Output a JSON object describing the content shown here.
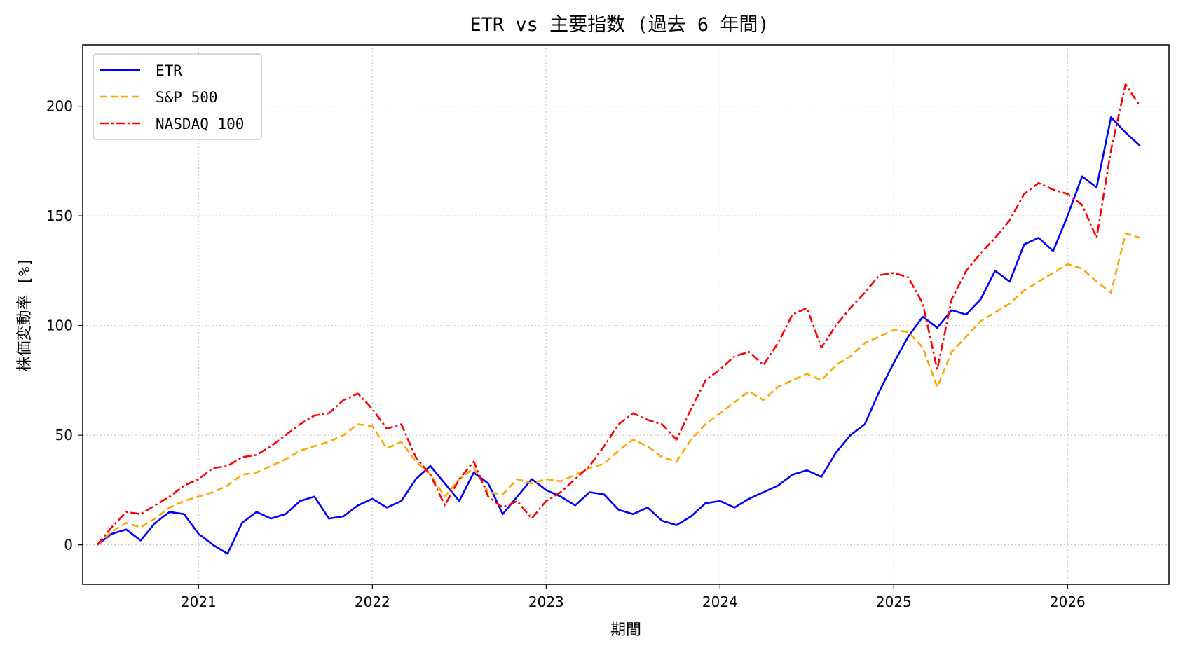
{
  "chart_data": {
    "type": "line",
    "title": "ETR vs 主要指数 (過去 6 年間)",
    "xlabel": "期間",
    "ylabel": "株価変動率 [%]",
    "x_range": [
      "2020-05",
      "2026-08"
    ],
    "ylim": [
      -18,
      228
    ],
    "x_ticks": [
      "2021",
      "2022",
      "2023",
      "2024",
      "2025",
      "2026"
    ],
    "y_ticks": [
      0,
      50,
      100,
      150,
      200
    ],
    "grid": true,
    "legend_position": "upper-left",
    "series": [
      {
        "name": "ETR",
        "color": "#0000ff",
        "style": "solid",
        "points": [
          [
            "2020-06",
            0
          ],
          [
            "2020-07",
            5
          ],
          [
            "2020-08",
            7
          ],
          [
            "2020-09",
            2
          ],
          [
            "2020-10",
            10
          ],
          [
            "2020-11",
            15
          ],
          [
            "2020-12",
            14
          ],
          [
            "2021-01",
            5
          ],
          [
            "2021-02",
            0
          ],
          [
            "2021-03",
            -4
          ],
          [
            "2021-04",
            10
          ],
          [
            "2021-05",
            15
          ],
          [
            "2021-06",
            12
          ],
          [
            "2021-07",
            14
          ],
          [
            "2021-08",
            20
          ],
          [
            "2021-09",
            22
          ],
          [
            "2021-10",
            12
          ],
          [
            "2021-11",
            13
          ],
          [
            "2021-12",
            18
          ],
          [
            "2022-01",
            21
          ],
          [
            "2022-02",
            17
          ],
          [
            "2022-03",
            20
          ],
          [
            "2022-04",
            30
          ],
          [
            "2022-05",
            36
          ],
          [
            "2022-06",
            28
          ],
          [
            "2022-07",
            20
          ],
          [
            "2022-08",
            33
          ],
          [
            "2022-09",
            28
          ],
          [
            "2022-10",
            14
          ],
          [
            "2022-11",
            22
          ],
          [
            "2022-12",
            30
          ],
          [
            "2023-01",
            25
          ],
          [
            "2023-02",
            22
          ],
          [
            "2023-03",
            18
          ],
          [
            "2023-04",
            24
          ],
          [
            "2023-05",
            23
          ],
          [
            "2023-06",
            16
          ],
          [
            "2023-07",
            14
          ],
          [
            "2023-08",
            17
          ],
          [
            "2023-09",
            11
          ],
          [
            "2023-10",
            9
          ],
          [
            "2023-11",
            13
          ],
          [
            "2023-12",
            19
          ],
          [
            "2024-01",
            20
          ],
          [
            "2024-02",
            17
          ],
          [
            "2024-03",
            21
          ],
          [
            "2024-04",
            24
          ],
          [
            "2024-05",
            27
          ],
          [
            "2024-06",
            32
          ],
          [
            "2024-07",
            34
          ],
          [
            "2024-08",
            31
          ],
          [
            "2024-09",
            42
          ],
          [
            "2024-10",
            50
          ],
          [
            "2024-11",
            55
          ],
          [
            "2024-12",
            70
          ],
          [
            "2025-01",
            83
          ],
          [
            "2025-02",
            95
          ],
          [
            "2025-03",
            104
          ],
          [
            "2025-04",
            99
          ],
          [
            "2025-05",
            107
          ],
          [
            "2025-06",
            105
          ],
          [
            "2025-07",
            112
          ],
          [
            "2025-08",
            125
          ],
          [
            "2025-09",
            120
          ],
          [
            "2025-10",
            137
          ],
          [
            "2025-11",
            140
          ],
          [
            "2025-12",
            134
          ],
          [
            "2026-01",
            150
          ],
          [
            "2026-02",
            168
          ],
          [
            "2026-03",
            163
          ],
          [
            "2026-04",
            195
          ],
          [
            "2026-05",
            188
          ],
          [
            "2026-06",
            182
          ]
        ]
      },
      {
        "name": "S&P 500",
        "color": "#ffa500",
        "style": "dashed",
        "points": [
          [
            "2020-06",
            0
          ],
          [
            "2020-07",
            6
          ],
          [
            "2020-08",
            10
          ],
          [
            "2020-09",
            8
          ],
          [
            "2020-10",
            12
          ],
          [
            "2020-11",
            17
          ],
          [
            "2020-12",
            20
          ],
          [
            "2021-01",
            22
          ],
          [
            "2021-02",
            24
          ],
          [
            "2021-03",
            27
          ],
          [
            "2021-04",
            32
          ],
          [
            "2021-05",
            33
          ],
          [
            "2021-06",
            36
          ],
          [
            "2021-07",
            39
          ],
          [
            "2021-08",
            43
          ],
          [
            "2021-09",
            45
          ],
          [
            "2021-10",
            47
          ],
          [
            "2021-11",
            50
          ],
          [
            "2021-12",
            55
          ],
          [
            "2022-01",
            54
          ],
          [
            "2022-02",
            44
          ],
          [
            "2022-03",
            47
          ],
          [
            "2022-04",
            38
          ],
          [
            "2022-05",
            32
          ],
          [
            "2022-06",
            22
          ],
          [
            "2022-07",
            30
          ],
          [
            "2022-08",
            35
          ],
          [
            "2022-09",
            24
          ],
          [
            "2022-10",
            23
          ],
          [
            "2022-11",
            30
          ],
          [
            "2022-12",
            28
          ],
          [
            "2023-01",
            30
          ],
          [
            "2023-02",
            29
          ],
          [
            "2023-03",
            32
          ],
          [
            "2023-04",
            35
          ],
          [
            "2023-05",
            37
          ],
          [
            "2023-06",
            43
          ],
          [
            "2023-07",
            48
          ],
          [
            "2023-08",
            45
          ],
          [
            "2023-09",
            40
          ],
          [
            "2023-10",
            38
          ],
          [
            "2023-11",
            48
          ],
          [
            "2023-12",
            55
          ],
          [
            "2024-01",
            60
          ],
          [
            "2024-02",
            65
          ],
          [
            "2024-03",
            70
          ],
          [
            "2024-04",
            66
          ],
          [
            "2024-05",
            72
          ],
          [
            "2024-06",
            75
          ],
          [
            "2024-07",
            78
          ],
          [
            "2024-08",
            75
          ],
          [
            "2024-09",
            82
          ],
          [
            "2024-10",
            86
          ],
          [
            "2024-11",
            92
          ],
          [
            "2024-12",
            95
          ],
          [
            "2025-01",
            98
          ],
          [
            "2025-02",
            97
          ],
          [
            "2025-03",
            90
          ],
          [
            "2025-04",
            72
          ],
          [
            "2025-05",
            88
          ],
          [
            "2025-06",
            95
          ],
          [
            "2025-07",
            102
          ],
          [
            "2025-08",
            106
          ],
          [
            "2025-09",
            110
          ],
          [
            "2025-10",
            116
          ],
          [
            "2025-11",
            120
          ],
          [
            "2025-12",
            124
          ],
          [
            "2026-01",
            128
          ],
          [
            "2026-02",
            126
          ],
          [
            "2026-03",
            120
          ],
          [
            "2026-04",
            115
          ],
          [
            "2026-05",
            142
          ],
          [
            "2026-06",
            140
          ]
        ]
      },
      {
        "name": "NASDAQ 100",
        "color": "#ff0000",
        "style": "dashdot",
        "points": [
          [
            "2020-06",
            0
          ],
          [
            "2020-07",
            8
          ],
          [
            "2020-08",
            15
          ],
          [
            "2020-09",
            14
          ],
          [
            "2020-10",
            18
          ],
          [
            "2020-11",
            22
          ],
          [
            "2020-12",
            27
          ],
          [
            "2021-01",
            30
          ],
          [
            "2021-02",
            35
          ],
          [
            "2021-03",
            36
          ],
          [
            "2021-04",
            40
          ],
          [
            "2021-05",
            41
          ],
          [
            "2021-06",
            45
          ],
          [
            "2021-07",
            50
          ],
          [
            "2021-08",
            55
          ],
          [
            "2021-09",
            59
          ],
          [
            "2021-10",
            60
          ],
          [
            "2021-11",
            66
          ],
          [
            "2021-12",
            69
          ],
          [
            "2022-01",
            62
          ],
          [
            "2022-02",
            53
          ],
          [
            "2022-03",
            55
          ],
          [
            "2022-04",
            40
          ],
          [
            "2022-05",
            32
          ],
          [
            "2022-06",
            18
          ],
          [
            "2022-07",
            30
          ],
          [
            "2022-08",
            38
          ],
          [
            "2022-09",
            22
          ],
          [
            "2022-10",
            17
          ],
          [
            "2022-11",
            20
          ],
          [
            "2022-12",
            12
          ],
          [
            "2023-01",
            20
          ],
          [
            "2023-02",
            24
          ],
          [
            "2023-03",
            30
          ],
          [
            "2023-04",
            36
          ],
          [
            "2023-05",
            45
          ],
          [
            "2023-06",
            55
          ],
          [
            "2023-07",
            60
          ],
          [
            "2023-08",
            57
          ],
          [
            "2023-09",
            55
          ],
          [
            "2023-10",
            48
          ],
          [
            "2023-11",
            62
          ],
          [
            "2023-12",
            75
          ],
          [
            "2024-01",
            80
          ],
          [
            "2024-02",
            86
          ],
          [
            "2024-03",
            88
          ],
          [
            "2024-04",
            82
          ],
          [
            "2024-05",
            92
          ],
          [
            "2024-06",
            105
          ],
          [
            "2024-07",
            108
          ],
          [
            "2024-08",
            90
          ],
          [
            "2024-09",
            100
          ],
          [
            "2024-10",
            108
          ],
          [
            "2024-11",
            115
          ],
          [
            "2024-12",
            123
          ],
          [
            "2025-01",
            124
          ],
          [
            "2025-02",
            122
          ],
          [
            "2025-03",
            110
          ],
          [
            "2025-04",
            80
          ],
          [
            "2025-05",
            112
          ],
          [
            "2025-06",
            125
          ],
          [
            "2025-07",
            133
          ],
          [
            "2025-08",
            140
          ],
          [
            "2025-09",
            148
          ],
          [
            "2025-10",
            160
          ],
          [
            "2025-11",
            165
          ],
          [
            "2025-12",
            162
          ],
          [
            "2026-01",
            160
          ],
          [
            "2026-02",
            155
          ],
          [
            "2026-03",
            140
          ],
          [
            "2026-04",
            180
          ],
          [
            "2026-05",
            210
          ],
          [
            "2026-06",
            200
          ]
        ]
      }
    ]
  }
}
